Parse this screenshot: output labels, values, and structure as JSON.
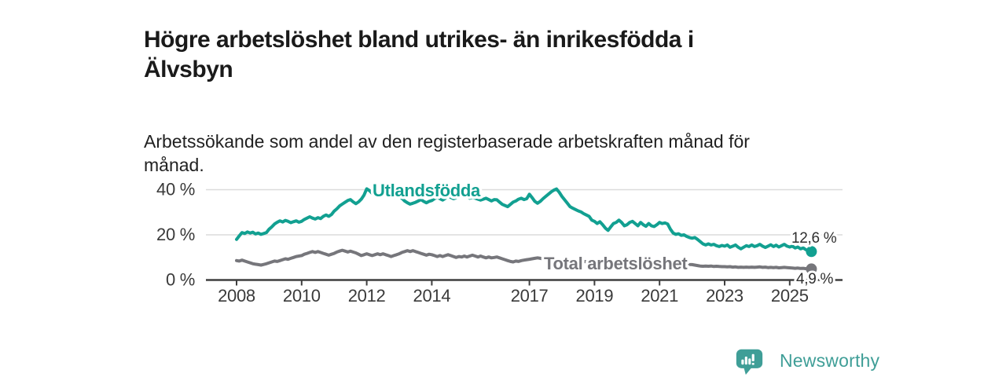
{
  "header": {
    "title": "Högre arbetslöshet bland utrikes- än inrikesfödda i\nÄlvsbyn",
    "subtitle": "Arbetssökande som andel av den registerbaserade arbetskraften månad för\nmånad."
  },
  "chart_data": {
    "type": "line",
    "title": "Högre arbetslöshet bland utrikes- än inrikesfödda i Älvsbyn",
    "subtitle": "Arbetssökande som andel av den registerbaserade arbetskraften månad för månad.",
    "x_unit": "monthly, decimal years",
    "xlim": [
      2008,
      2025.75
    ],
    "ylim": [
      0,
      44
    ],
    "grid": "horizontal",
    "legend_position": "inline-labels",
    "x_ticks": [
      2008,
      2010,
      2012,
      2014,
      2017,
      2019,
      2021,
      2023,
      2025
    ],
    "y_ticks": [
      {
        "value": 0,
        "label": "0 %"
      },
      {
        "value": 20,
        "label": "20 %"
      },
      {
        "value": 40,
        "label": "40 %"
      }
    ],
    "series": [
      {
        "name": "Utlandsfödda",
        "color": "#12A091",
        "end_label": "12,6 %",
        "end_value": 12.6,
        "start_year": 2008,
        "monthly_values": [
          18.0,
          19.5,
          21.0,
          20.6,
          21.3,
          20.8,
          21.2,
          20.4,
          20.8,
          20.2,
          20.6,
          21.0,
          22.5,
          23.5,
          24.8,
          25.6,
          26.2,
          25.7,
          26.4,
          26.0,
          25.4,
          25.8,
          26.2,
          25.6,
          26.0,
          26.8,
          27.4,
          28.0,
          27.4,
          27.0,
          27.6,
          27.2,
          28.2,
          28.8,
          28.2,
          29.0,
          30.5,
          31.5,
          32.8,
          33.6,
          34.4,
          35.2,
          35.6,
          34.6,
          33.8,
          34.6,
          35.8,
          37.6,
          40.4,
          39.6,
          38.4,
          37.6,
          37.2,
          38.2,
          39.0,
          38.4,
          37.8,
          37.2,
          36.6,
          37.0,
          37.2,
          36.2,
          35.0,
          34.2,
          33.6,
          34.0,
          34.4,
          35.0,
          35.6,
          34.8,
          34.2,
          34.8,
          35.2,
          36.0,
          36.6,
          36.0,
          35.4,
          36.2,
          37.4,
          36.6,
          36.0,
          36.4,
          36.8,
          37.2,
          37.6,
          36.8,
          36.2,
          36.6,
          36.2,
          35.8,
          35.4,
          35.8,
          36.2,
          35.6,
          35.0,
          35.6,
          35.5,
          34.5,
          33.5,
          33.0,
          32.5,
          33.5,
          34.5,
          35.0,
          35.8,
          36.2,
          35.6,
          36.0,
          38.0,
          36.5,
          34.8,
          34.0,
          34.8,
          36.0,
          37.0,
          38.0,
          39.0,
          39.8,
          40.3,
          38.8,
          37.0,
          35.5,
          34.0,
          32.5,
          31.8,
          31.2,
          30.6,
          30.2,
          29.4,
          28.8,
          28.2,
          26.5,
          26.0,
          25.0,
          25.8,
          24.5,
          23.0,
          22.0,
          23.5,
          25.0,
          25.5,
          26.5,
          25.5,
          24.0,
          24.5,
          25.5,
          26.0,
          25.0,
          24.0,
          25.5,
          24.5,
          23.8,
          25.0,
          24.0,
          23.7,
          24.5,
          25.5,
          25.0,
          25.3,
          24.8,
          22.5,
          20.8,
          20.2,
          20.5,
          19.8,
          20.0,
          19.3,
          18.8,
          18.5,
          18.8,
          18.0,
          17.0,
          16.0,
          15.5,
          16.0,
          15.5,
          15.8,
          15.2,
          14.8,
          15.3,
          15.0,
          15.5,
          14.5,
          15.0,
          15.5,
          14.5,
          13.8,
          14.5,
          15.2,
          14.8,
          15.5,
          14.8,
          15.2,
          15.8,
          15.0,
          14.4,
          15.0,
          15.6,
          14.8,
          15.4,
          14.6,
          15.2,
          15.8,
          15.0,
          14.6,
          15.0,
          14.2,
          14.6,
          13.8,
          14.2,
          13.4,
          13.0,
          12.6
        ]
      },
      {
        "name": "Total arbetslöshet",
        "color": "#76767B",
        "end_label": "4,9 %",
        "end_value": 4.9,
        "start_year": 2008,
        "monthly_values": [
          8.6,
          8.4,
          8.8,
          8.4,
          8.0,
          7.6,
          7.2,
          7.0,
          6.8,
          6.6,
          6.9,
          7.2,
          7.6,
          8.0,
          8.4,
          8.2,
          8.6,
          9.0,
          9.4,
          9.2,
          9.6,
          10.0,
          10.4,
          10.6,
          10.8,
          11.4,
          11.8,
          12.2,
          12.6,
          12.2,
          12.6,
          12.2,
          11.8,
          11.4,
          11.0,
          11.4,
          11.8,
          12.4,
          12.8,
          13.2,
          12.8,
          12.4,
          12.8,
          12.4,
          12.0,
          11.4,
          10.8,
          11.2,
          11.6,
          11.2,
          10.8,
          11.2,
          11.6,
          11.2,
          11.6,
          11.2,
          10.8,
          10.4,
          10.8,
          11.2,
          11.6,
          12.2,
          12.6,
          13.0,
          12.6,
          13.0,
          12.6,
          12.2,
          11.8,
          11.4,
          11.0,
          11.4,
          11.2,
          10.8,
          10.4,
          10.8,
          10.4,
          10.8,
          11.2,
          10.8,
          10.4,
          10.0,
          10.4,
          10.2,
          10.6,
          10.2,
          10.6,
          11.0,
          10.6,
          10.2,
          10.6,
          10.2,
          9.8,
          10.2,
          9.8,
          10.0,
          10.2,
          9.8,
          9.4,
          9.0,
          8.6,
          8.2,
          8.0,
          8.4,
          8.2,
          8.6,
          8.8,
          9.0,
          9.2,
          9.4,
          9.6,
          9.8,
          9.6,
          9.4,
          9.3,
          9.2,
          9.1,
          9.0,
          9.0,
          8.9,
          9.0,
          8.9,
          8.8,
          8.7,
          8.6,
          8.5,
          8.4,
          8.3,
          8.2,
          8.1,
          8.0,
          8.0,
          8.0,
          7.9,
          7.8,
          7.7,
          7.6,
          7.6,
          7.7,
          7.8,
          7.9,
          8.0,
          8.0,
          8.0,
          8.0,
          8.2,
          8.4,
          8.6,
          8.6,
          8.5,
          8.4,
          8.3,
          8.2,
          8.1,
          8.0,
          8.0,
          8.0,
          7.9,
          7.8,
          7.7,
          7.6,
          7.5,
          7.4,
          7.3,
          7.2,
          7.1,
          7.0,
          6.9,
          6.8,
          6.6,
          6.4,
          6.2,
          6.1,
          6.2,
          6.1,
          6.2,
          6.0,
          6.1,
          6.0,
          5.9,
          5.9,
          5.8,
          5.9,
          5.7,
          5.8,
          5.6,
          5.7,
          5.6,
          5.7,
          5.6,
          5.7,
          5.6,
          5.7,
          5.8,
          5.6,
          5.7,
          5.5,
          5.6,
          5.5,
          5.6,
          5.4,
          5.5,
          5.6,
          5.5,
          5.4,
          5.3,
          5.2,
          5.3,
          5.1,
          5.2,
          5.0,
          5.0,
          4.9
        ]
      }
    ]
  },
  "footer": {
    "brand": "Newsworthy",
    "brand_color": "#3F9E97"
  },
  "colors": {
    "background": "#FFFFFF",
    "grid": "#DCDCDC",
    "axis": "#3F3F3F",
    "axis_label": "#3A3A3A",
    "annotation": "#2E2E2E"
  }
}
